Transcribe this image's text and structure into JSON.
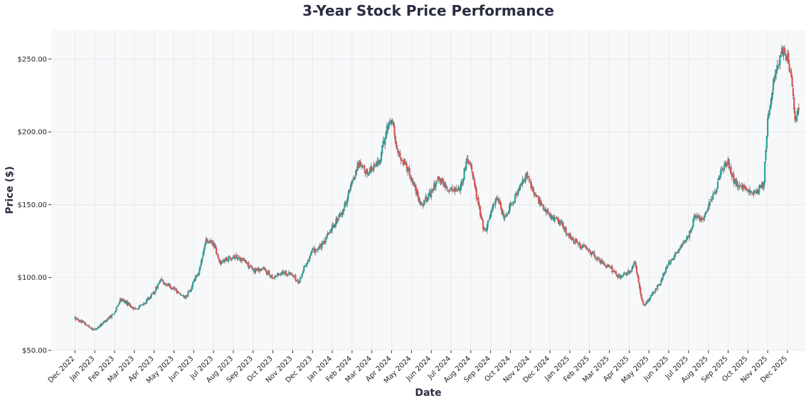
{
  "chart_data": {
    "type": "candlestick",
    "title": "3-Year Stock Price Performance",
    "xlabel": "Date",
    "ylabel": "Price ($)",
    "ylim": [
      50,
      270
    ],
    "yticks": [
      50,
      100,
      150,
      200,
      250
    ],
    "ytick_labels": [
      "$50.00",
      "$100.00",
      "$150.00",
      "$200.00",
      "$250.00"
    ],
    "xlim": [
      -1.2,
      36.9
    ],
    "x_ticks": [
      "Dec 2022",
      "Jan 2023",
      "Feb 2023",
      "Mar 2023",
      "Apr 2023",
      "May 2023",
      "Jun 2023",
      "Jul 2023",
      "Aug 2023",
      "Sep 2023",
      "Oct 2023",
      "Nov 2023",
      "Dec 2023",
      "Jan 2024",
      "Feb 2024",
      "Mar 2024",
      "Apr 2024",
      "May 2024",
      "Jun 2024",
      "Jul 2024",
      "Aug 2024",
      "Sep 2024",
      "Oct 2024",
      "Nov 2024",
      "Dec 2024",
      "Jan 2025",
      "Feb 2025",
      "Mar 2025",
      "Apr 2025",
      "May 2025",
      "Jun 2025",
      "Jul 2025",
      "Aug 2025",
      "Sep 2025",
      "Oct 2025",
      "Nov 2025",
      "Dec 2025"
    ],
    "up_color": "#26a69a",
    "down_color": "#e05252",
    "wick_color": "#555555",
    "plot_bg": "#f7f8fa",
    "grid": true,
    "candle_width_months": 0.075,
    "price_path": [
      {
        "t": 0.0,
        "p": 72
      },
      {
        "t": 0.5,
        "p": 68
      },
      {
        "t": 1.0,
        "p": 64
      },
      {
        "t": 1.5,
        "p": 70
      },
      {
        "t": 2.0,
        "p": 76
      },
      {
        "t": 2.3,
        "p": 85
      },
      {
        "t": 2.7,
        "p": 82
      },
      {
        "t": 3.0,
        "p": 78
      },
      {
        "t": 3.5,
        "p": 82
      },
      {
        "t": 4.0,
        "p": 90
      },
      {
        "t": 4.3,
        "p": 98
      },
      {
        "t": 4.7,
        "p": 95
      },
      {
        "t": 5.0,
        "p": 92
      },
      {
        "t": 5.5,
        "p": 87
      },
      {
        "t": 5.8,
        "p": 90
      },
      {
        "t": 6.0,
        "p": 98
      },
      {
        "t": 6.3,
        "p": 105
      },
      {
        "t": 6.6,
        "p": 125
      },
      {
        "t": 7.0,
        "p": 123
      },
      {
        "t": 7.3,
        "p": 110
      },
      {
        "t": 8.0,
        "p": 115
      },
      {
        "t": 8.5,
        "p": 112
      },
      {
        "t": 9.0,
        "p": 105
      },
      {
        "t": 9.5,
        "p": 106
      },
      {
        "t": 10.0,
        "p": 100
      },
      {
        "t": 10.5,
        "p": 104
      },
      {
        "t": 11.0,
        "p": 102
      },
      {
        "t": 11.3,
        "p": 96
      },
      {
        "t": 11.6,
        "p": 108
      },
      {
        "t": 12.0,
        "p": 118
      },
      {
        "t": 12.5,
        "p": 122
      },
      {
        "t": 13.0,
        "p": 135
      },
      {
        "t": 13.5,
        "p": 145
      },
      {
        "t": 14.0,
        "p": 165
      },
      {
        "t": 14.3,
        "p": 178
      },
      {
        "t": 14.7,
        "p": 172
      },
      {
        "t": 15.0,
        "p": 175
      },
      {
        "t": 15.4,
        "p": 180
      },
      {
        "t": 15.7,
        "p": 200
      },
      {
        "t": 16.0,
        "p": 210
      },
      {
        "t": 16.3,
        "p": 185
      },
      {
        "t": 16.7,
        "p": 178
      },
      {
        "t": 17.0,
        "p": 168
      },
      {
        "t": 17.5,
        "p": 150
      },
      {
        "t": 18.0,
        "p": 158
      },
      {
        "t": 18.3,
        "p": 168
      },
      {
        "t": 18.7,
        "p": 163
      },
      {
        "t": 19.0,
        "p": 160
      },
      {
        "t": 19.5,
        "p": 162
      },
      {
        "t": 19.8,
        "p": 182
      },
      {
        "t": 20.0,
        "p": 178
      },
      {
        "t": 20.3,
        "p": 155
      },
      {
        "t": 20.7,
        "p": 130
      },
      {
        "t": 21.0,
        "p": 145
      },
      {
        "t": 21.3,
        "p": 155
      },
      {
        "t": 21.7,
        "p": 140
      },
      {
        "t": 22.0,
        "p": 150
      },
      {
        "t": 22.5,
        "p": 162
      },
      {
        "t": 22.8,
        "p": 170
      },
      {
        "t": 23.0,
        "p": 165
      },
      {
        "t": 23.3,
        "p": 155
      },
      {
        "t": 23.7,
        "p": 148
      },
      {
        "t": 24.0,
        "p": 142
      },
      {
        "t": 24.5,
        "p": 138
      },
      {
        "t": 25.0,
        "p": 128
      },
      {
        "t": 25.5,
        "p": 122
      },
      {
        "t": 26.0,
        "p": 118
      },
      {
        "t": 26.5,
        "p": 112
      },
      {
        "t": 27.0,
        "p": 107
      },
      {
        "t": 27.5,
        "p": 100
      },
      {
        "t": 28.0,
        "p": 104
      },
      {
        "t": 28.3,
        "p": 110
      },
      {
        "t": 28.7,
        "p": 80
      },
      {
        "t": 29.0,
        "p": 85
      },
      {
        "t": 29.5,
        "p": 95
      },
      {
        "t": 30.0,
        "p": 110
      },
      {
        "t": 30.5,
        "p": 118
      },
      {
        "t": 31.0,
        "p": 128
      },
      {
        "t": 31.3,
        "p": 142
      },
      {
        "t": 31.7,
        "p": 140
      },
      {
        "t": 32.0,
        "p": 150
      },
      {
        "t": 32.4,
        "p": 160
      },
      {
        "t": 32.7,
        "p": 175
      },
      {
        "t": 33.0,
        "p": 180
      },
      {
        "t": 33.3,
        "p": 165
      },
      {
        "t": 33.7,
        "p": 162
      },
      {
        "t": 34.0,
        "p": 158
      },
      {
        "t": 34.5,
        "p": 160
      },
      {
        "t": 34.8,
        "p": 165
      },
      {
        "t": 35.0,
        "p": 210
      },
      {
        "t": 35.3,
        "p": 235
      },
      {
        "t": 35.7,
        "p": 255
      },
      {
        "t": 36.0,
        "p": 250
      },
      {
        "t": 36.2,
        "p": 235
      },
      {
        "t": 36.4,
        "p": 205
      },
      {
        "t": 36.6,
        "p": 218
      }
    ]
  }
}
